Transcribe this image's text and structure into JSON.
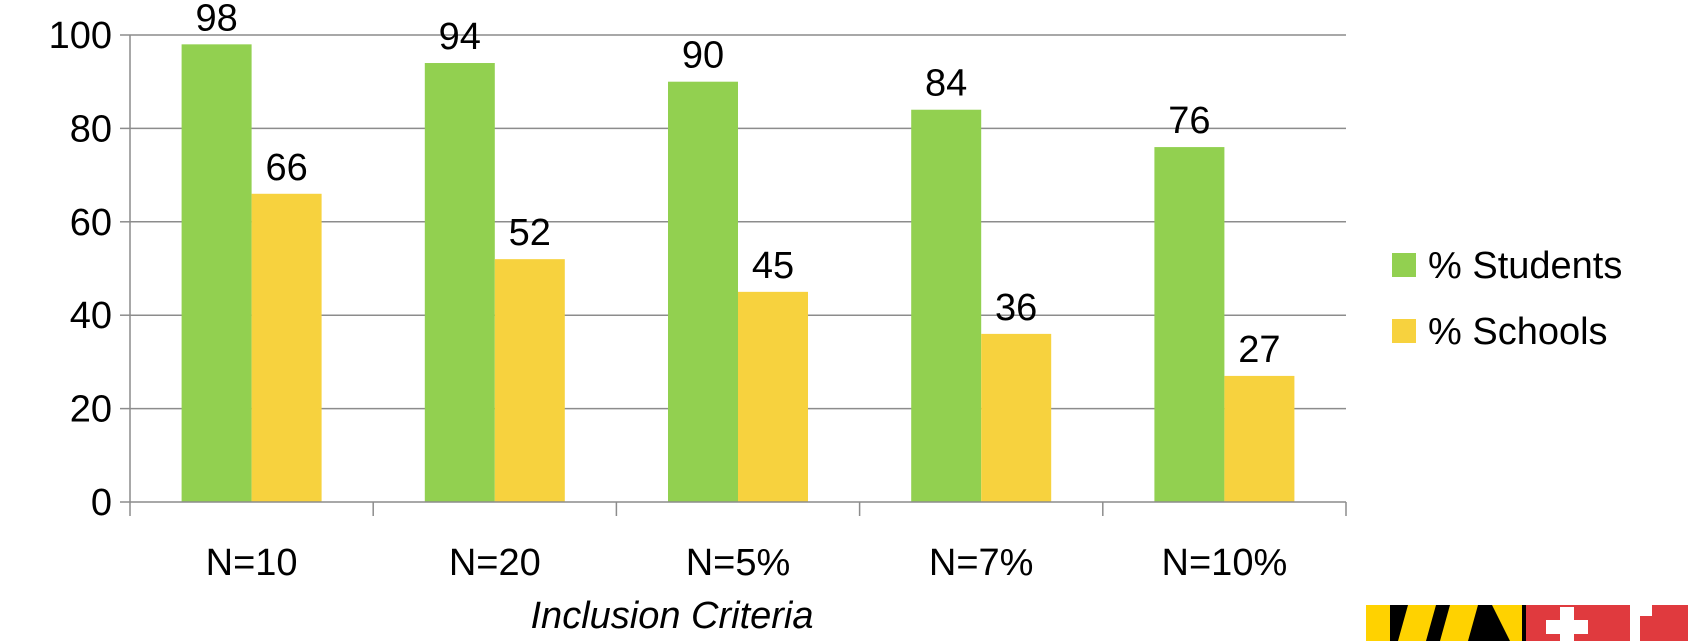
{
  "chart_data": {
    "type": "bar",
    "categories": [
      "N=10",
      "N=20",
      "N=5%",
      "N=7%",
      "N=10%"
    ],
    "series": [
      {
        "name": "% Students",
        "values": [
          98,
          94,
          90,
          84,
          76
        ],
        "color": "#92D050"
      },
      {
        "name": "% Schools",
        "values": [
          66,
          52,
          45,
          36,
          27
        ],
        "color": "#F7D23E"
      }
    ],
    "title": "",
    "xlabel": "Inclusion Criteria",
    "ylabel": "",
    "ylim": [
      0,
      100
    ],
    "yticks": [
      0,
      20,
      40,
      60,
      80,
      100
    ],
    "grid": true,
    "legend_position": "right",
    "data_labels": true
  },
  "logo": {
    "description": "Maryland flag style logo fragment",
    "colors": [
      "#FFD200",
      "#000000",
      "#E03A3E",
      "#FFFFFF"
    ]
  }
}
